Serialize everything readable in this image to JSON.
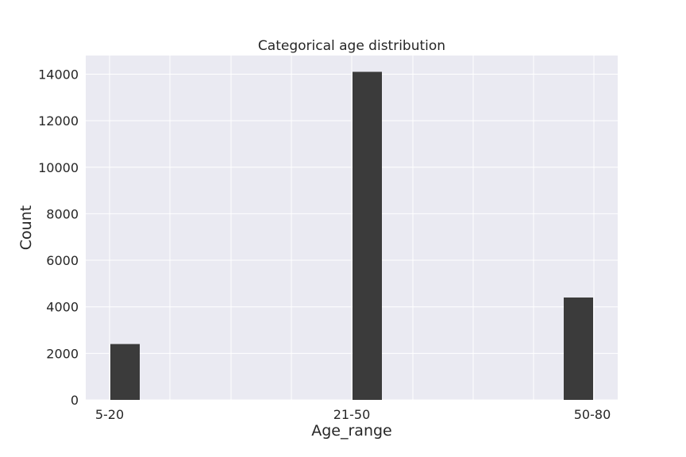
{
  "chart_data": {
    "type": "bar",
    "title": "Categorical age distribution",
    "xlabel": "Age_range",
    "ylabel": "Count",
    "categories": [
      "5-20",
      "21-50",
      "50-80"
    ],
    "values": [
      2400,
      14100,
      4400
    ],
    "ylim": [
      0,
      14800
    ],
    "yticks": [
      0,
      2000,
      4000,
      6000,
      8000,
      10000,
      12000,
      14000
    ],
    "ytick_labels": [
      "0",
      "2000",
      "4000",
      "6000",
      "8000",
      "10000",
      "12000",
      "14000"
    ],
    "grid": true,
    "bar_color": "#3b3b3b",
    "background_color": "#eaeaf2",
    "grid_color": "#ffffff"
  }
}
